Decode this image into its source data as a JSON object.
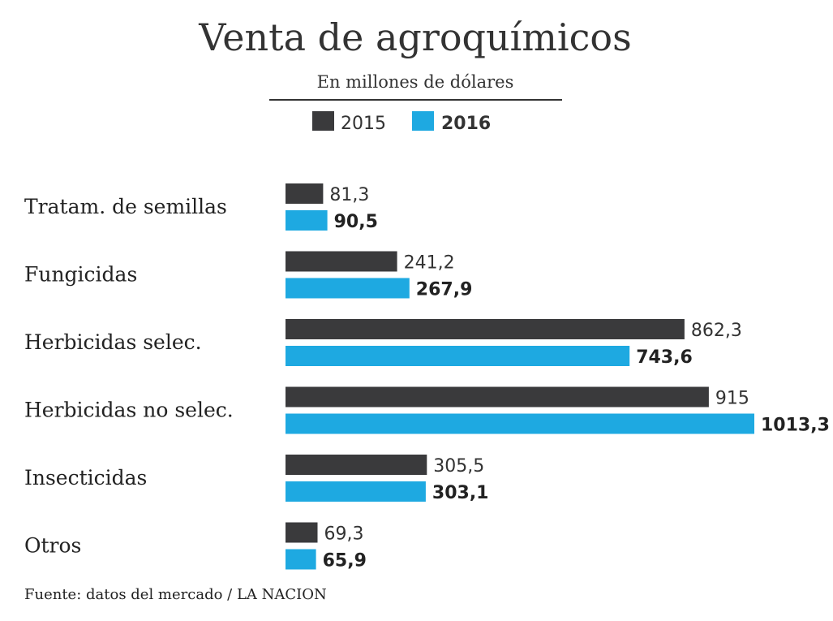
{
  "chart_data": {
    "type": "bar",
    "orientation": "horizontal",
    "title": "Venta de agroquímicos",
    "subtitle": "En millones de dólares",
    "categories": [
      "Tratam. de semillas",
      "Fungicidas",
      "Herbicidas selec.",
      "Herbicidas no selec.",
      "Insecticidas",
      "Otros"
    ],
    "series": [
      {
        "name": "2015",
        "color": "#3a3a3c",
        "values": [
          81.3,
          241.2,
          862.3,
          915,
          305.5,
          69.3
        ],
        "labels": [
          "81,3",
          "241,2",
          "862,3",
          "915",
          "305,5",
          "69,3"
        ]
      },
      {
        "name": "2016",
        "color": "#1ea9e1",
        "values": [
          90.5,
          267.9,
          743.6,
          1013.3,
          303.1,
          65.9
        ],
        "labels": [
          "90,5",
          "267,9",
          "743,6",
          "1013,3",
          "303,1",
          "65,9"
        ]
      }
    ],
    "xlim": [
      0,
      1013.3
    ],
    "grid": false,
    "legend_position": "top-center",
    "source": "Fuente: datos del mercado / LA NACION"
  }
}
